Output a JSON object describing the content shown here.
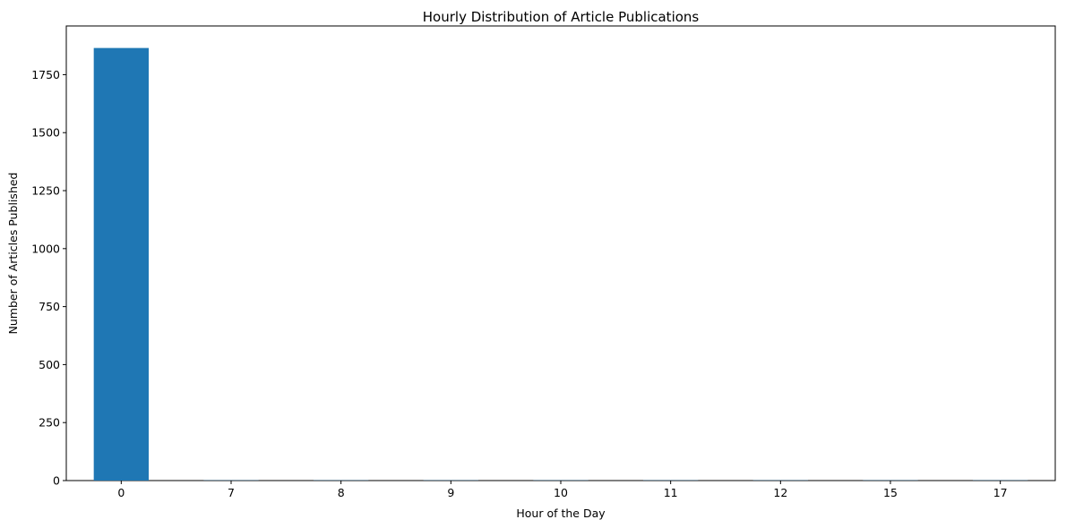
{
  "chart_data": {
    "type": "bar",
    "title": "Hourly Distribution of Article Publications",
    "xlabel": "Hour of the Day",
    "ylabel": "Number of Articles Published",
    "categories": [
      "0",
      "7",
      "8",
      "9",
      "10",
      "11",
      "12",
      "15",
      "17"
    ],
    "values": [
      1865,
      1,
      1,
      1,
      1,
      1,
      1,
      1,
      1
    ],
    "ylim": [
      0,
      1960
    ],
    "yticks": [
      0,
      250,
      500,
      750,
      1000,
      1250,
      1500,
      1750
    ],
    "grid": false,
    "bar_color": "#1f77b4"
  }
}
